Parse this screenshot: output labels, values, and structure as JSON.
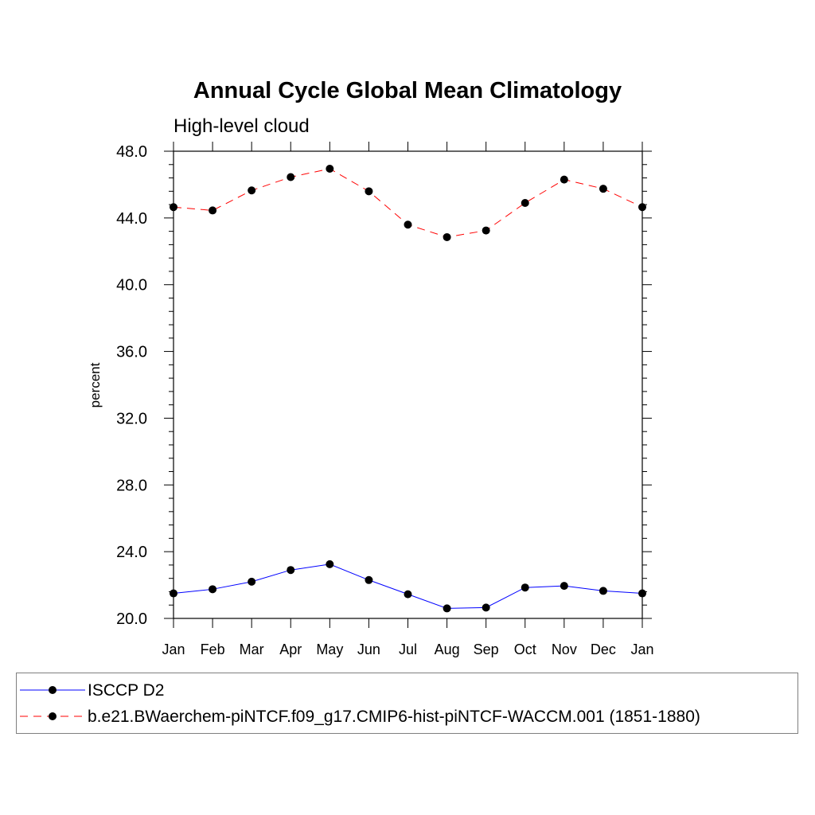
{
  "chart_data": {
    "type": "line",
    "title": "Annual Cycle Global Mean Climatology",
    "subtitle": "High-level cloud",
    "xlabel": "",
    "ylabel": "percent",
    "categories": [
      "Jan",
      "Feb",
      "Mar",
      "Apr",
      "May",
      "Jun",
      "Jul",
      "Aug",
      "Sep",
      "Oct",
      "Nov",
      "Dec",
      "Jan"
    ],
    "ylim": [
      20.0,
      48.0
    ],
    "yticks": [
      "20.0",
      "24.0",
      "28.0",
      "32.0",
      "36.0",
      "40.0",
      "44.0",
      "48.0"
    ],
    "ytick_values": [
      20,
      24,
      28,
      32,
      36,
      40,
      44,
      48
    ],
    "grid": false,
    "legend_position": "bottom",
    "series": [
      {
        "name": "ISCCP D2",
        "color": "#0000ff",
        "line_style": "solid",
        "marker": "filled-circle",
        "values": [
          21.5,
          21.75,
          22.2,
          22.9,
          23.25,
          22.3,
          21.45,
          20.6,
          20.65,
          21.85,
          21.95,
          21.65,
          21.5
        ]
      },
      {
        "name": "b.e21.BWaerchem-piNTCF.f09_g17.CMIP6-hist-piNTCF-WACCM.001 (1851-1880)",
        "color": "#ff0000",
        "line_style": "dashed",
        "marker": "filled-circle",
        "values": [
          44.65,
          44.45,
          45.65,
          46.45,
          46.95,
          45.6,
          43.6,
          42.85,
          43.25,
          44.9,
          46.3,
          45.75,
          44.65
        ]
      }
    ]
  }
}
